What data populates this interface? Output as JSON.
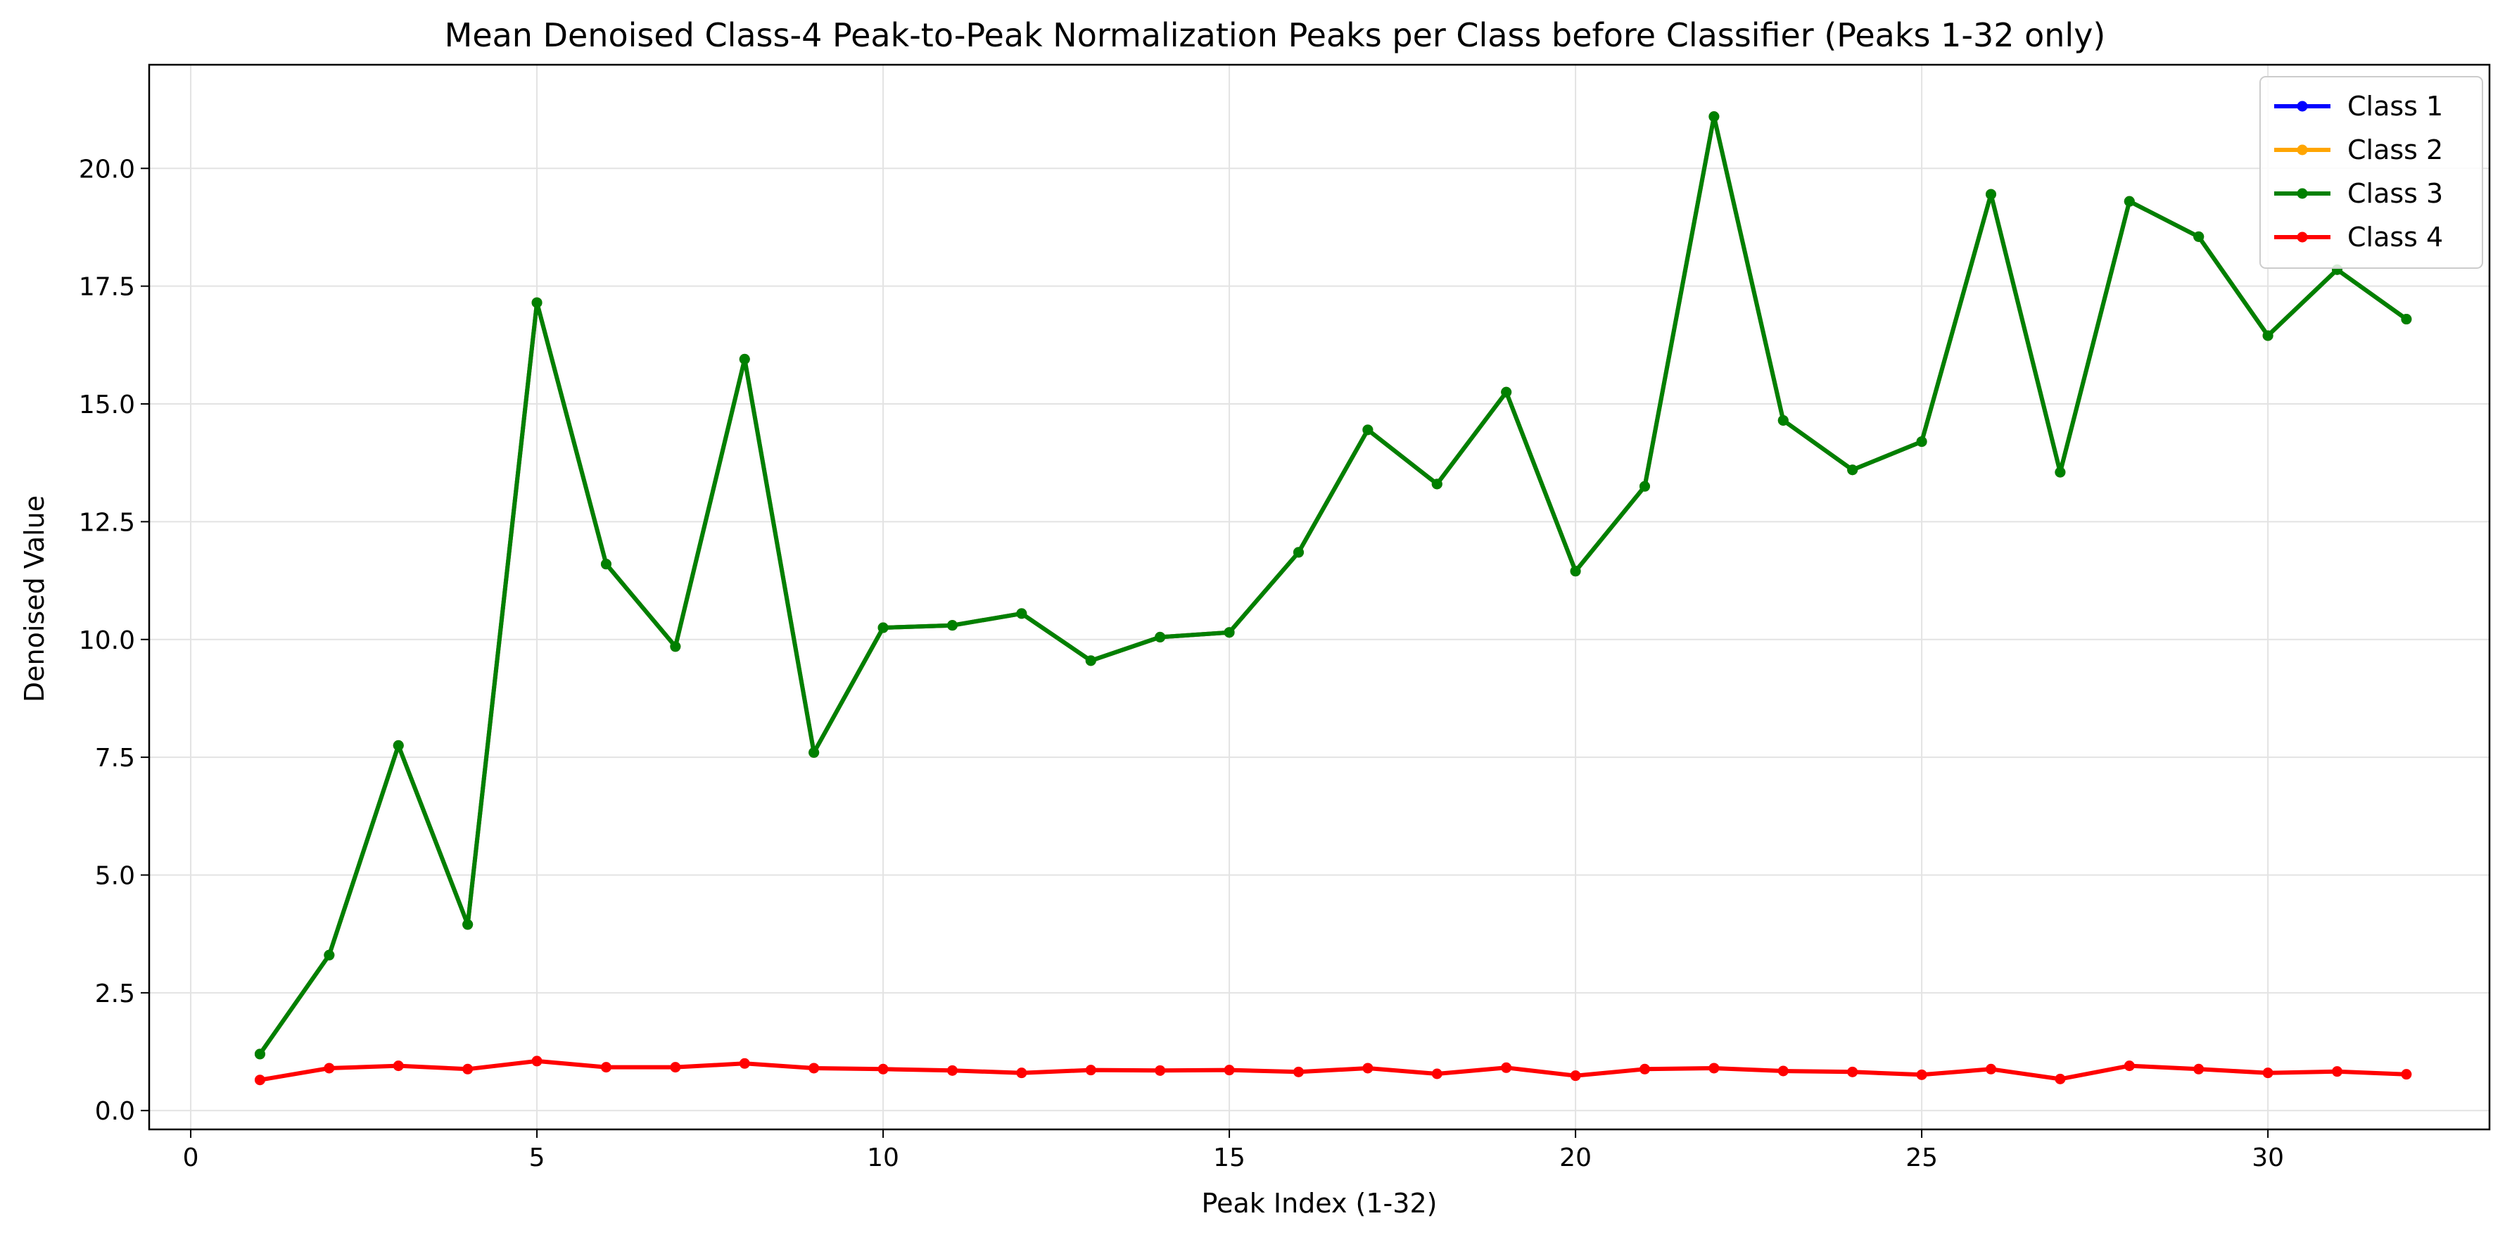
{
  "chart_data": {
    "type": "line",
    "title": "Mean Denoised Class-4 Peak-to-Peak Normalization Peaks per Class before Classifier (Peaks 1-32 only)",
    "xlabel": "Peak Index (1-32)",
    "ylabel": "Denoised Value",
    "xlim": [
      -0.6,
      33.2
    ],
    "ylim": [
      -0.4,
      22.2
    ],
    "xticks": [
      0,
      5,
      10,
      15,
      20,
      25,
      30
    ],
    "xtick_labels": [
      "0",
      "5",
      "10",
      "15",
      "20",
      "25",
      "30"
    ],
    "yticks": [
      0,
      2.5,
      5,
      7.5,
      10,
      12.5,
      15,
      17.5,
      20
    ],
    "ytick_labels": [
      "0.0",
      "2.5",
      "5.0",
      "7.5",
      "10.0",
      "12.5",
      "15.0",
      "17.5",
      "20.0"
    ],
    "grid": true,
    "legend_position": "top-right",
    "x": [
      1,
      2,
      3,
      4,
      5,
      6,
      7,
      8,
      9,
      10,
      11,
      12,
      13,
      14,
      15,
      16,
      17,
      18,
      19,
      20,
      21,
      22,
      23,
      24,
      25,
      26,
      27,
      28,
      29,
      30,
      31,
      32
    ],
    "series": [
      {
        "name": "Class 1",
        "color": "#0000ff",
        "values": [
          1.2,
          3.3,
          7.75,
          3.95,
          17.15,
          11.6,
          9.85,
          15.95,
          7.6,
          10.25,
          10.3,
          10.55,
          9.55,
          10.05,
          10.15,
          11.85,
          14.45,
          13.3,
          15.25,
          11.45,
          13.25,
          21.1,
          14.65,
          13.6,
          14.2,
          19.45,
          13.55,
          19.3,
          18.55,
          16.45,
          17.85,
          16.8
        ]
      },
      {
        "name": "Class 2",
        "color": "#ffa500",
        "values": [
          1.2,
          3.3,
          7.75,
          3.95,
          17.15,
          11.6,
          9.85,
          15.95,
          7.6,
          10.25,
          10.3,
          10.55,
          9.55,
          10.05,
          10.15,
          11.85,
          14.45,
          13.3,
          15.25,
          11.45,
          13.25,
          21.1,
          14.65,
          13.6,
          14.2,
          19.45,
          13.55,
          19.3,
          18.55,
          16.45,
          17.85,
          16.8
        ]
      },
      {
        "name": "Class 3",
        "color": "#008000",
        "values": [
          1.2,
          3.3,
          7.75,
          3.95,
          17.15,
          11.6,
          9.85,
          15.95,
          7.6,
          10.25,
          10.3,
          10.55,
          9.55,
          10.05,
          10.15,
          11.85,
          14.45,
          13.3,
          15.25,
          11.45,
          13.25,
          21.1,
          14.65,
          13.6,
          14.2,
          19.45,
          13.55,
          19.3,
          18.55,
          16.45,
          17.85,
          16.8
        ]
      },
      {
        "name": "Class 4",
        "color": "#ff0000",
        "values": [
          0.65,
          0.9,
          0.95,
          0.88,
          1.05,
          0.92,
          0.92,
          1.0,
          0.9,
          0.88,
          0.85,
          0.8,
          0.86,
          0.85,
          0.86,
          0.82,
          0.9,
          0.78,
          0.91,
          0.74,
          0.88,
          0.9,
          0.84,
          0.82,
          0.76,
          0.88,
          0.67,
          0.95,
          0.88,
          0.8,
          0.83,
          0.77
        ]
      }
    ]
  }
}
